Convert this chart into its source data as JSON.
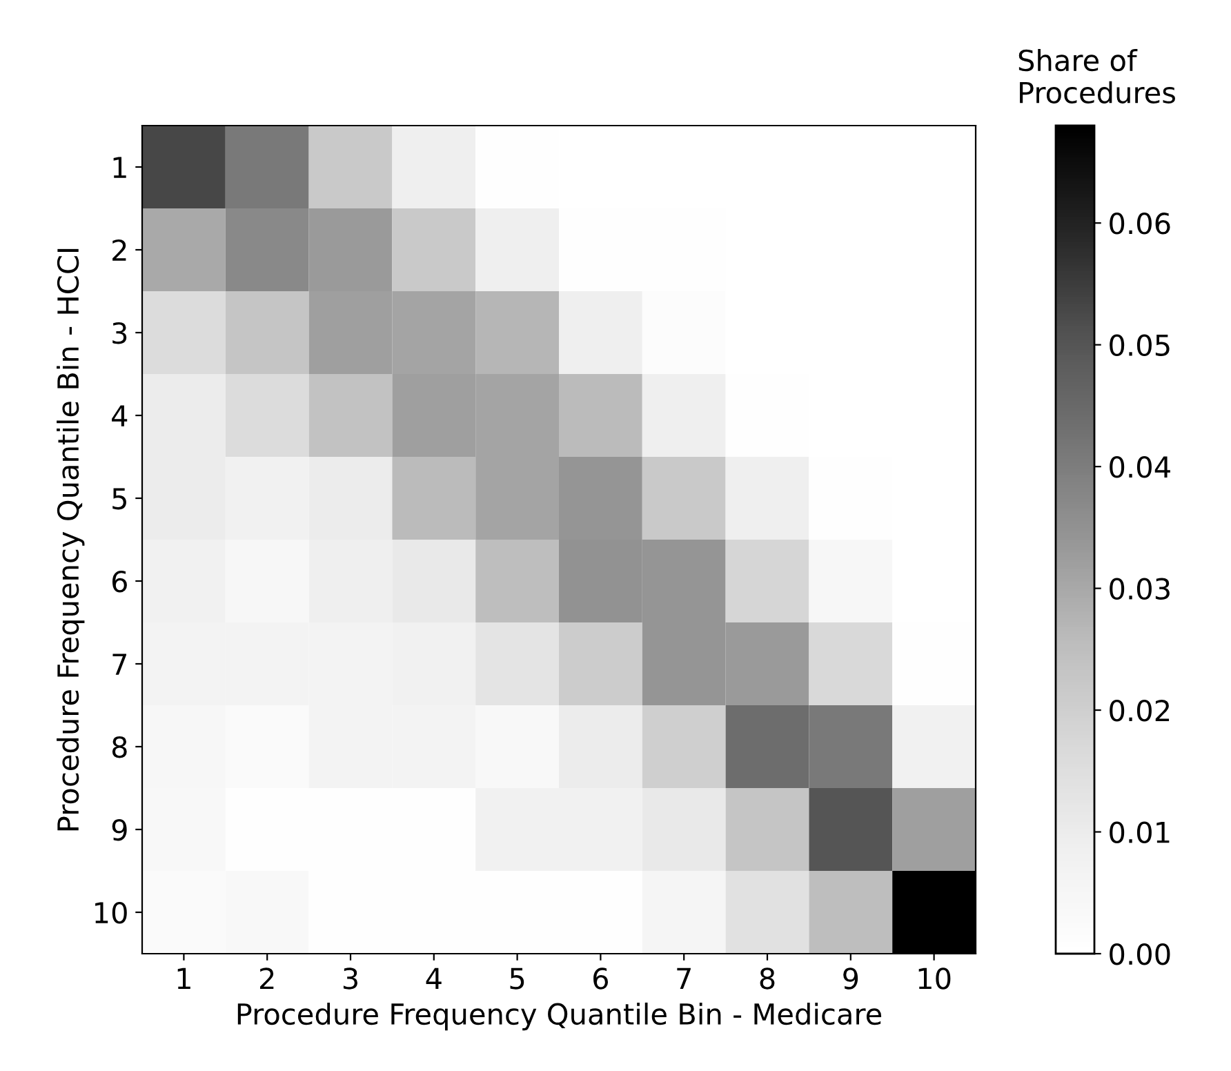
{
  "chart_data": {
    "type": "heatmap",
    "xlabel": "Procedure Frequency Quantile Bin - Medicare",
    "ylabel": "Procedure Frequency Quantile Bin - HCCI",
    "clabel": "Share of\nProcedures",
    "categories": [
      "1",
      "2",
      "3",
      "4",
      "5",
      "6",
      "7",
      "8",
      "9",
      "10"
    ],
    "y_categories": [
      "1",
      "2",
      "3",
      "4",
      "5",
      "6",
      "7",
      "8",
      "9",
      "10"
    ],
    "cells": [
      [
        0.053,
        0.041,
        0.022,
        0.009,
        0.001,
        0,
        0,
        0,
        0,
        0
      ],
      [
        0.03,
        0.037,
        0.033,
        0.022,
        0.009,
        0.001,
        0.001,
        0,
        0,
        0
      ],
      [
        0.016,
        0.023,
        0.032,
        0.031,
        0.027,
        0.009,
        0.002,
        0,
        0,
        0
      ],
      [
        0.01,
        0.016,
        0.024,
        0.032,
        0.031,
        0.026,
        0.009,
        0.001,
        0,
        0
      ],
      [
        0.01,
        0.008,
        0.01,
        0.026,
        0.031,
        0.034,
        0.022,
        0.009,
        0.001,
        0
      ],
      [
        0.008,
        0.005,
        0.009,
        0.011,
        0.025,
        0.035,
        0.034,
        0.018,
        0.005,
        0
      ],
      [
        0.007,
        0.007,
        0.007,
        0.008,
        0.013,
        0.021,
        0.034,
        0.033,
        0.017,
        0.001
      ],
      [
        0.005,
        0.003,
        0.007,
        0.007,
        0.004,
        0.01,
        0.02,
        0.044,
        0.041,
        0.008
      ],
      [
        0.004,
        0.001,
        0.001,
        0.001,
        0.008,
        0.008,
        0.011,
        0.023,
        0.05,
        0.032
      ],
      [
        0.003,
        0.004,
        0.001,
        0.001,
        0.001,
        0.001,
        0.006,
        0.014,
        0.025,
        0.068
      ]
    ],
    "clim": [
      0,
      0.068
    ],
    "cticks": [
      {
        "value": 0,
        "label": "0.00"
      },
      {
        "value": 0.01,
        "label": "0.01"
      },
      {
        "value": 0.02,
        "label": "0.02"
      },
      {
        "value": 0.03,
        "label": "0.03"
      },
      {
        "value": 0.04,
        "label": "0.04"
      },
      {
        "value": 0.05,
        "label": "0.05"
      },
      {
        "value": 0.06,
        "label": "0.06"
      }
    ]
  }
}
